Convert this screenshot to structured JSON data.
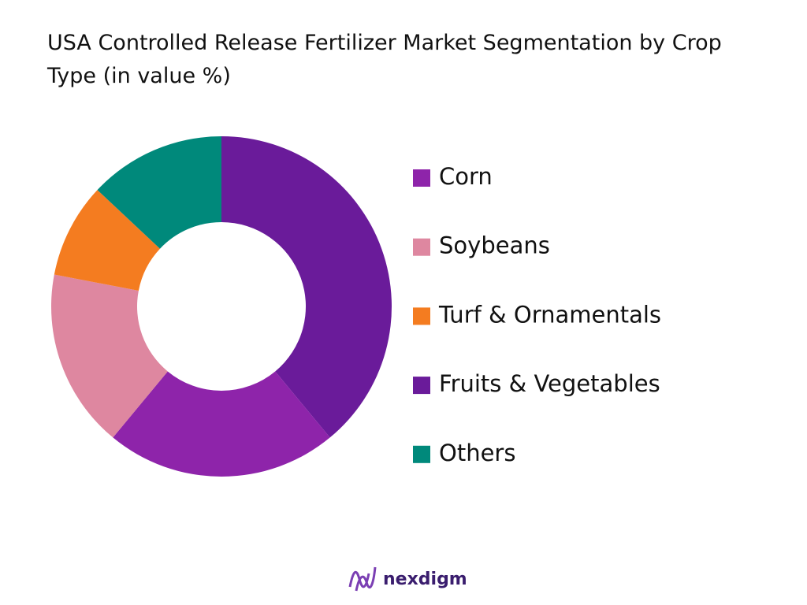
{
  "chart_data": {
    "type": "donut",
    "title": "USA Controlled Release Fertilizer Market Segmentation by Crop Type (in value %)",
    "categories": [
      "Corn",
      "Soybeans",
      "Turf & Ornamentals",
      "Fruits & Vegetables",
      "Others"
    ],
    "values": [
      22,
      17,
      9,
      39,
      13
    ],
    "colors": [
      "#8e24aa",
      "#de87a0",
      "#f47c20",
      "#6a1b9a",
      "#00897b"
    ],
    "legend": "right"
  },
  "footer": {
    "brand": "nexdigm"
  }
}
